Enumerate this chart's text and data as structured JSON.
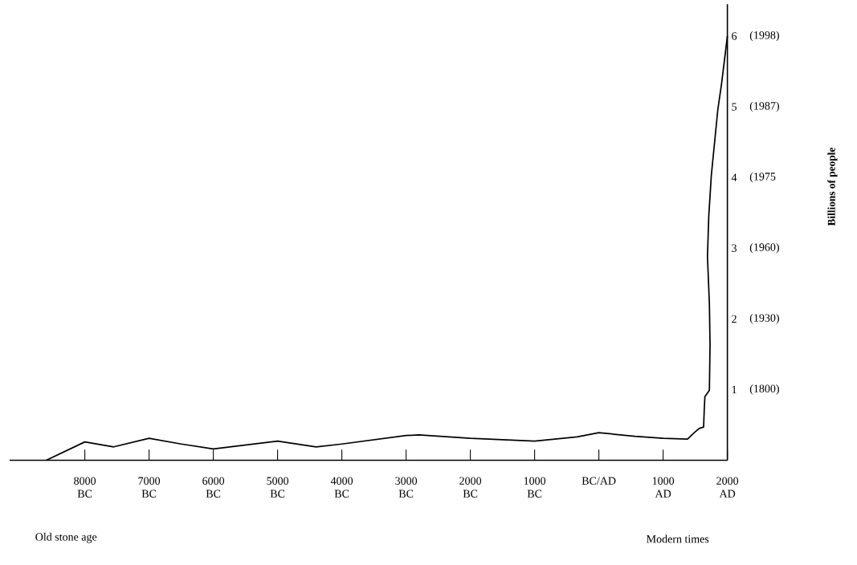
{
  "chart_data": {
    "type": "line",
    "annotations": [
      "Old stone age",
      "Modern times",
      "(1800)",
      "(1930)",
      "(1960)",
      "(1975",
      "(1987)",
      "(1998)",
      "Billions of people"
    ],
    "xlim": [
      -9170,
      2000
    ],
    "xticks": [
      {
        "value": -8000,
        "label": "8000 BC"
      },
      {
        "value": -7000,
        "label": "7000 BC"
      },
      {
        "value": -6000,
        "label": "6000 BC"
      },
      {
        "value": -5000,
        "label": "5000 BC"
      },
      {
        "value": -4000,
        "label": "4000 BC"
      },
      {
        "value": -3000,
        "label": "3000 BC"
      },
      {
        "value": -2000,
        "label": "2000 BC"
      },
      {
        "value": -1000,
        "label": "1000 BC"
      },
      {
        "value": 0,
        "label": "BC/AD"
      },
      {
        "value": 1000,
        "label": "1000 AD"
      },
      {
        "value": 2000,
        "label": "2000 AD"
      }
    ],
    "ylim": [
      0,
      6.45
    ],
    "yticks": [
      1,
      2,
      3,
      4,
      5,
      6
    ],
    "grid": false,
    "marker": "none",
    "line_style": "solid",
    "series": [
      {
        "color": "#000000",
        "x": [
          -8600,
          -8000,
          -7550,
          -7000,
          -6500,
          -6000,
          -5000,
          -4400,
          -4000,
          -3000,
          -2800,
          -2000,
          -1000,
          -340,
          0,
          560,
          1000,
          1380,
          1470,
          1560,
          1630,
          1640,
          1650,
          1720,
          1730,
          1720,
          1690,
          1710,
          1750,
          1800,
          1850,
          1910,
          2000
        ],
        "values": [
          0,
          0.26,
          0.19,
          0.31,
          0.23,
          0.16,
          0.27,
          0.19,
          0.23,
          0.35,
          0.36,
          0.31,
          0.27,
          0.33,
          0.39,
          0.34,
          0.31,
          0.3,
          0.38,
          0.45,
          0.47,
          0.72,
          0.9,
          0.99,
          1.63,
          2.21,
          2.88,
          3.45,
          4.03,
          4.49,
          4.95,
          5.33,
          6.0
        ]
      }
    ]
  }
}
